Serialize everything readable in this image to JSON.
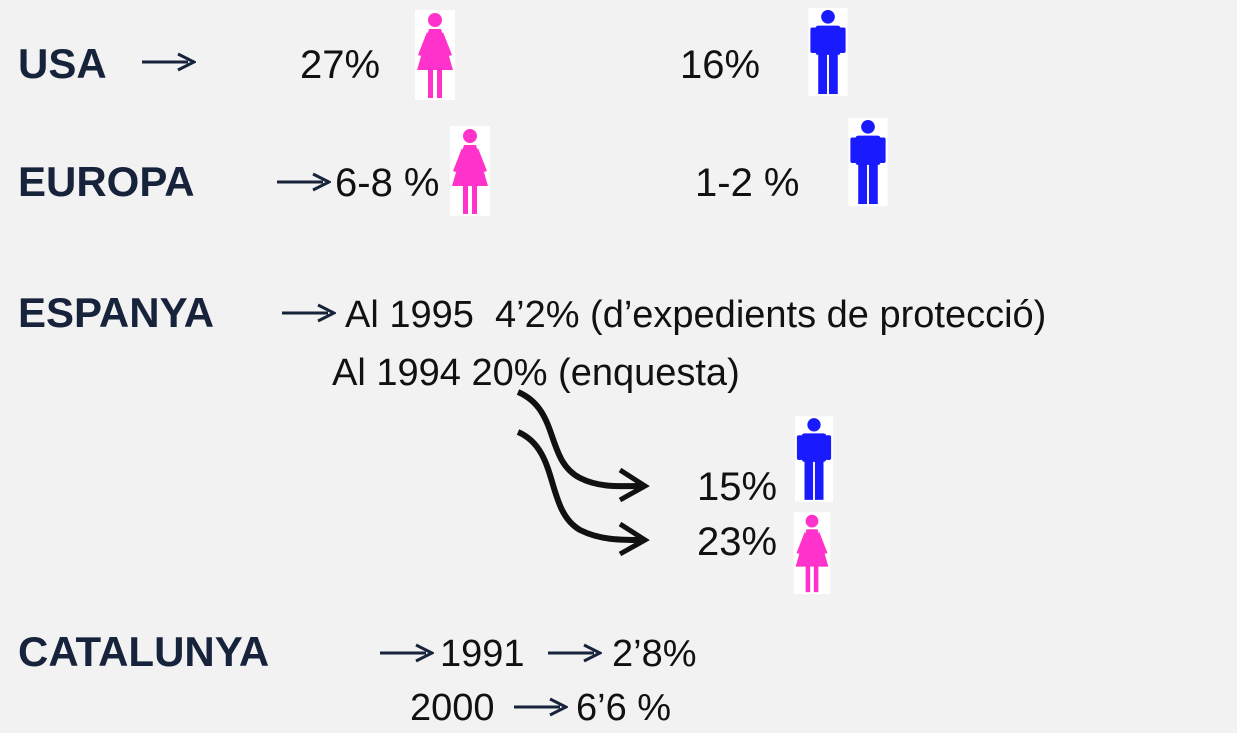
{
  "rows": [
    {
      "label": "USA",
      "female": "27%",
      "male": "16%"
    },
    {
      "label": "EUROPA",
      "female": "6-8 %",
      "male": "1-2 %"
    },
    {
      "label": "ESPANYA",
      "line1": "Al 1995  4’2% (d’expedients de protecció)",
      "line2": "Al 1994 20% (enquesta)",
      "male": "15%",
      "female": "23%"
    },
    {
      "label": "CATALUNYA",
      "year1": "1991",
      "value1": "2’8%",
      "year2": "2000",
      "value2": "6’6 %"
    }
  ]
}
